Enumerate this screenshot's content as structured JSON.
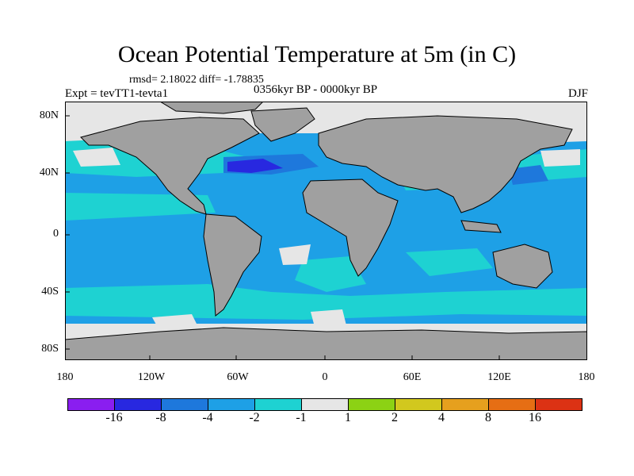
{
  "title": "Ocean Potential Temperature at 5m (in C)",
  "subtitle_stats": "rmsd= 2.18022 diff= -1.78835",
  "left_label": "Expt = tevTT1-tevta1",
  "center_label": "0356kyr BP - 0000kyr BP",
  "right_label": "DJF",
  "y_axis_labels": [
    "80N",
    "40N",
    "0",
    "40S",
    "80S"
  ],
  "x_axis_labels": [
    "180",
    "120W",
    "60W",
    "0",
    "60E",
    "120E",
    "180"
  ],
  "colorbar": {
    "colors": [
      "#8a1ef0",
      "#2828e0",
      "#1e78dc",
      "#1ea0e6",
      "#1ed2d2",
      "#e6e6e6",
      "#8cd214",
      "#d2c81e",
      "#e6a01e",
      "#e66e14",
      "#dc3214"
    ],
    "labels": [
      "-16",
      "-8",
      "-4",
      "-2",
      "-1",
      "1",
      "2",
      "4",
      "8",
      "16"
    ]
  },
  "map_colors": {
    "land": "#a0a0a0",
    "ocean_base": "#1ea0e6",
    "ocean_cyan": "#1ed2d2",
    "ocean_white": "#e6e6e6",
    "ocean_blue": "#1e78dc",
    "ocean_dark": "#2828e0"
  }
}
